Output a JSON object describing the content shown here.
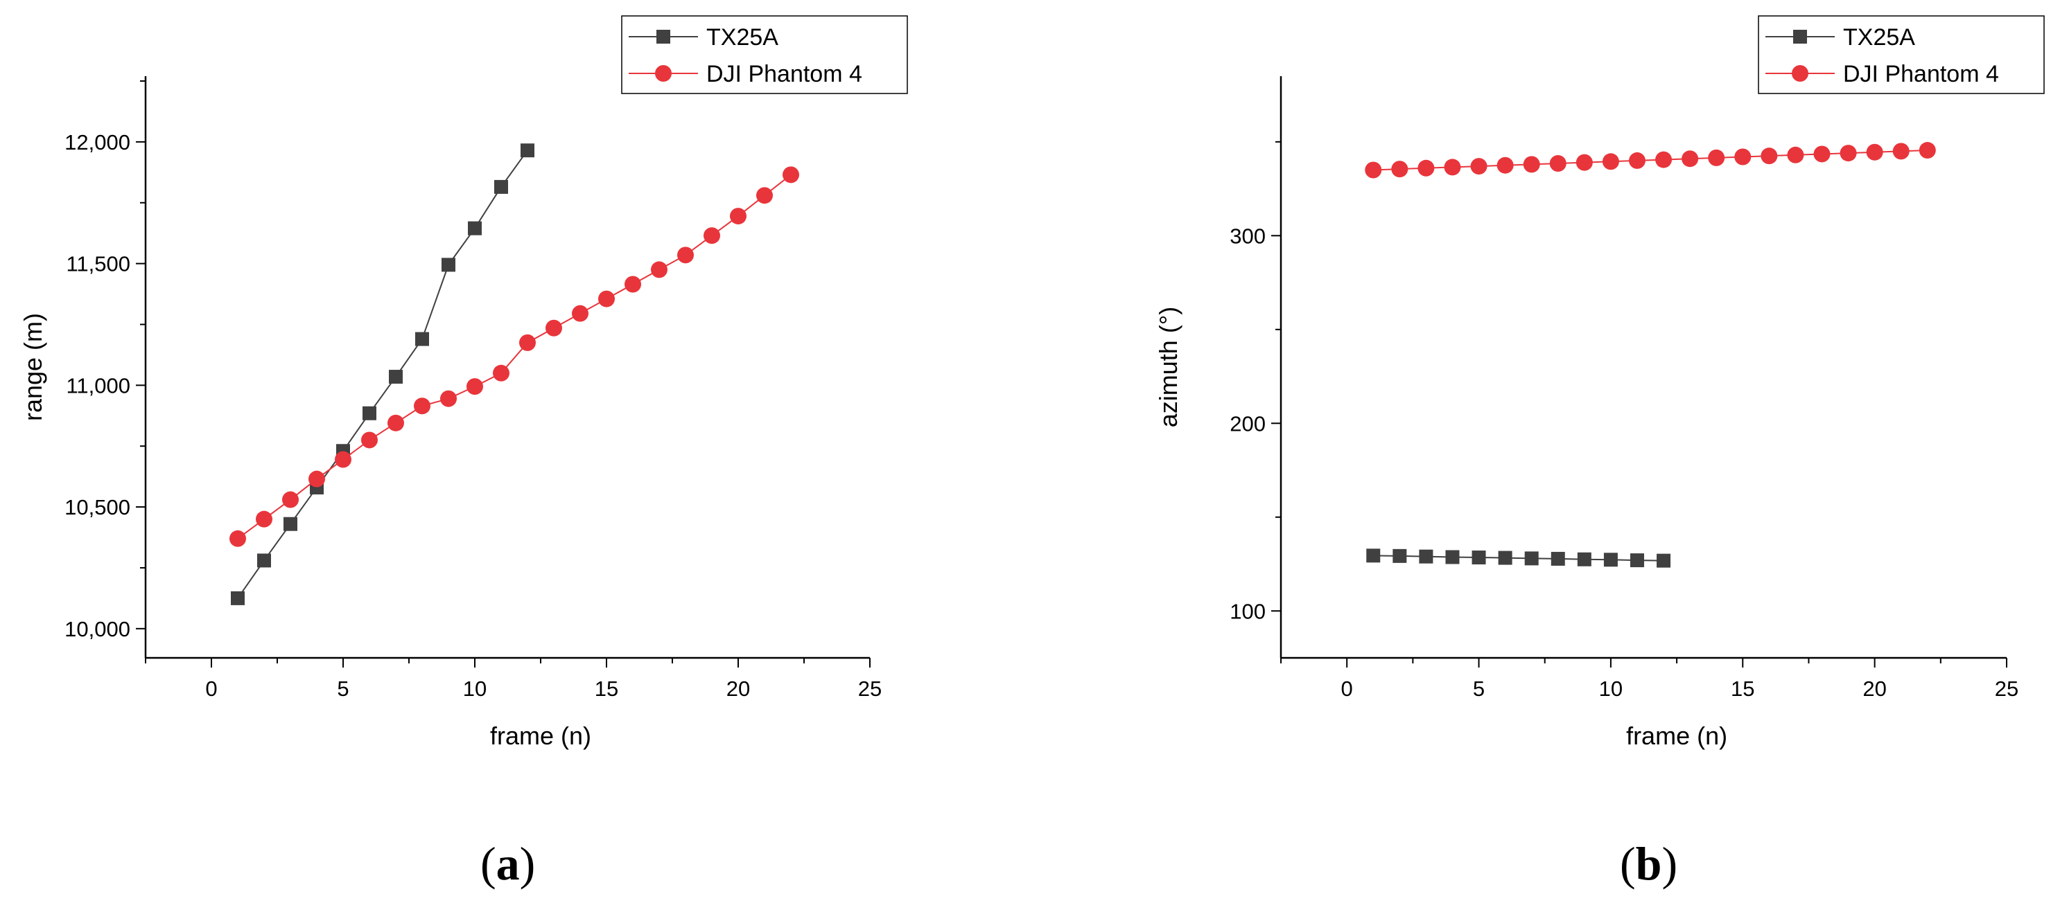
{
  "colors": {
    "series_tx25a": "#404040",
    "series_phantom": "#e8353b",
    "axis": "#000000"
  },
  "chart_data": [
    {
      "type": "line",
      "panel_label": "(a)",
      "panel_letter": "a",
      "xlabel": "frame (n)",
      "ylabel": "range (m)",
      "xlim": [
        -2.5,
        25
      ],
      "ylim": [
        9880,
        12270
      ],
      "xticks": [
        0,
        5,
        10,
        15,
        20,
        25
      ],
      "xtick_labels": [
        "0",
        "5",
        "10",
        "15",
        "20",
        "25"
      ],
      "yticks": [
        10000,
        10500,
        11000,
        11500,
        12000
      ],
      "ytick_labels": [
        "10,000",
        "10,500",
        "11,000",
        "11,500",
        "12,000"
      ],
      "legend_position": "top-right",
      "series": [
        {
          "name": "TX25A",
          "marker": "square",
          "x": [
            1,
            2,
            3,
            4,
            5,
            6,
            7,
            8,
            9,
            10,
            11,
            12
          ],
          "values": [
            10125,
            10280,
            10430,
            10580,
            10730,
            10885,
            11035,
            11190,
            11495,
            11645,
            11815,
            11965
          ]
        },
        {
          "name": "DJI Phantom 4",
          "marker": "circle",
          "x": [
            1,
            2,
            3,
            4,
            5,
            6,
            7,
            8,
            9,
            10,
            11,
            12,
            13,
            14,
            15,
            16,
            17,
            18,
            19,
            20,
            21,
            22
          ],
          "values": [
            10370,
            10450,
            10530,
            10615,
            10695,
            10775,
            10845,
            10915,
            10945,
            10995,
            11050,
            11175,
            11235,
            11295,
            11355,
            11415,
            11475,
            11535,
            11615,
            11695,
            11780,
            11865
          ]
        }
      ]
    },
    {
      "type": "line",
      "panel_label": "(b)",
      "panel_letter": "b",
      "xlabel": "frame (n)",
      "ylabel": "azimuth (°)",
      "xlim": [
        -2.5,
        25
      ],
      "ylim": [
        75,
        385
      ],
      "xticks": [
        0,
        5,
        10,
        15,
        20,
        25
      ],
      "xtick_labels": [
        "0",
        "5",
        "10",
        "15",
        "20",
        "25"
      ],
      "yticks": [
        100,
        200,
        300
      ],
      "ytick_labels": [
        "100",
        "200",
        "300"
      ],
      "legend_position": "top-right",
      "series": [
        {
          "name": "TX25A",
          "marker": "square",
          "x": [
            1,
            2,
            3,
            4,
            5,
            6,
            7,
            8,
            9,
            10,
            11,
            12
          ],
          "values": [
            129.5,
            129.3,
            129.0,
            128.7,
            128.5,
            128.3,
            128.0,
            127.8,
            127.5,
            127.3,
            127.0,
            126.8
          ]
        },
        {
          "name": "DJI Phantom 4",
          "marker": "circle",
          "x": [
            1,
            2,
            3,
            4,
            5,
            6,
            7,
            8,
            9,
            10,
            11,
            12,
            13,
            14,
            15,
            16,
            17,
            18,
            19,
            20,
            21,
            22
          ],
          "values": [
            335.0,
            335.5,
            336.0,
            336.5,
            337.0,
            337.5,
            338.0,
            338.5,
            339.0,
            339.5,
            340.0,
            340.5,
            341.0,
            341.5,
            342.0,
            342.5,
            343.0,
            343.5,
            344.0,
            344.5,
            345.0,
            345.5
          ]
        }
      ]
    }
  ]
}
